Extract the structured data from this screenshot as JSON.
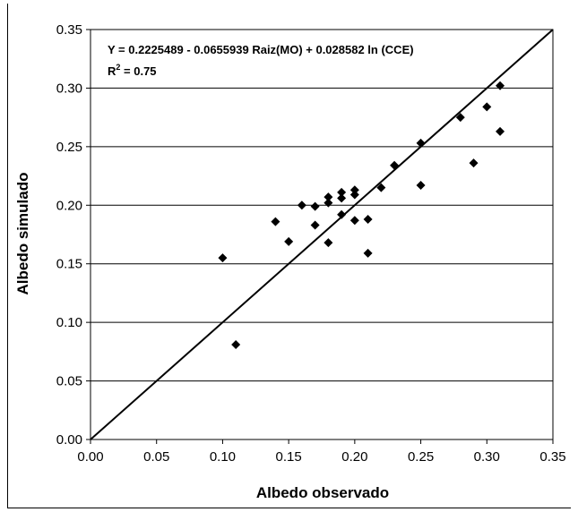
{
  "chart_data": {
    "type": "scatter",
    "xlabel": "Albedo observado",
    "ylabel": "Albedo simulado",
    "xlim": [
      0,
      0.35
    ],
    "ylim": [
      0,
      0.35
    ],
    "x_ticks": [
      "0.00",
      "0.05",
      "0.10",
      "0.15",
      "0.20",
      "0.25",
      "0.30",
      "0.35"
    ],
    "y_ticks": [
      "0.00",
      "0.05",
      "0.10",
      "0.15",
      "0.20",
      "0.25",
      "0.30",
      "0.35"
    ],
    "grid": "horizontal",
    "reference_line": "1:1",
    "annotation": {
      "equation": "Y = 0.2225489 - 0.0655939 Raiz(MO) + 0.028582 ln (CCE)",
      "r2_prefix": "R",
      "r2_exp": "2",
      "r2_value": " = 0.75"
    },
    "series": [
      {
        "marker": "diamond",
        "color": "#000000",
        "points": [
          {
            "x": 0.1,
            "y": 0.155
          },
          {
            "x": 0.11,
            "y": 0.081
          },
          {
            "x": 0.14,
            "y": 0.186
          },
          {
            "x": 0.15,
            "y": 0.169
          },
          {
            "x": 0.16,
            "y": 0.2
          },
          {
            "x": 0.17,
            "y": 0.199
          },
          {
            "x": 0.17,
            "y": 0.183
          },
          {
            "x": 0.18,
            "y": 0.207
          },
          {
            "x": 0.18,
            "y": 0.202
          },
          {
            "x": 0.18,
            "y": 0.168
          },
          {
            "x": 0.19,
            "y": 0.211
          },
          {
            "x": 0.19,
            "y": 0.206
          },
          {
            "x": 0.19,
            "y": 0.192
          },
          {
            "x": 0.2,
            "y": 0.213
          },
          {
            "x": 0.2,
            "y": 0.209
          },
          {
            "x": 0.2,
            "y": 0.187
          },
          {
            "x": 0.21,
            "y": 0.188
          },
          {
            "x": 0.21,
            "y": 0.159
          },
          {
            "x": 0.22,
            "y": 0.215
          },
          {
            "x": 0.23,
            "y": 0.234
          },
          {
            "x": 0.25,
            "y": 0.253
          },
          {
            "x": 0.25,
            "y": 0.217
          },
          {
            "x": 0.28,
            "y": 0.275
          },
          {
            "x": 0.29,
            "y": 0.236
          },
          {
            "x": 0.3,
            "y": 0.284
          },
          {
            "x": 0.31,
            "y": 0.302
          },
          {
            "x": 0.31,
            "y": 0.263
          }
        ]
      }
    ]
  }
}
